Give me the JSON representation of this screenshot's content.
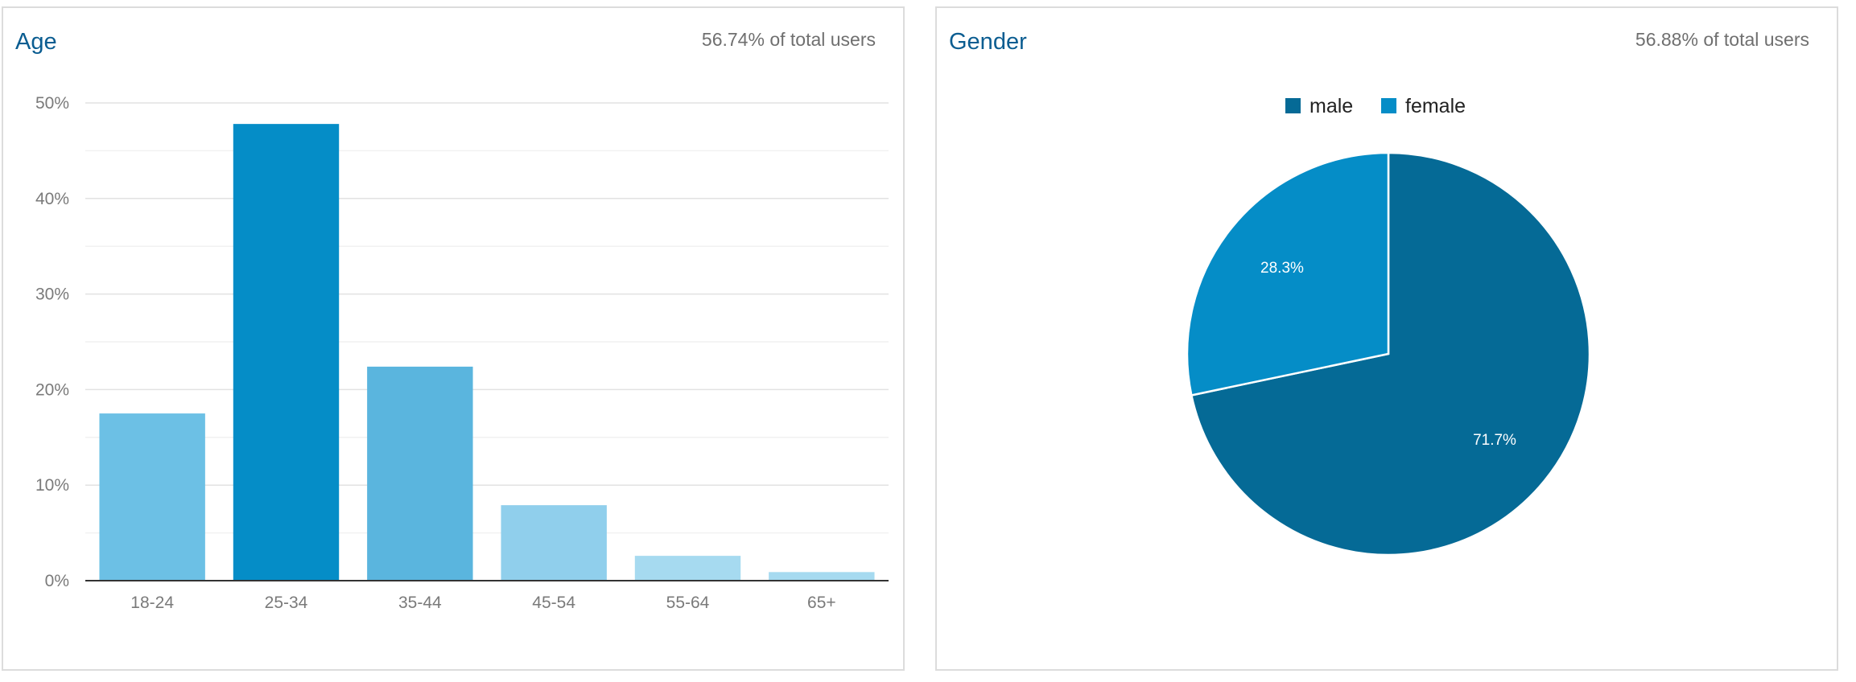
{
  "chart_data": [
    {
      "type": "bar",
      "title": "Age",
      "subtitle": "56.74% of total users",
      "categories": [
        "18-24",
        "25-34",
        "35-44",
        "45-54",
        "55-64",
        "65+"
      ],
      "values": [
        17.5,
        47.8,
        22.4,
        7.9,
        2.6,
        0.9
      ],
      "bar_colors": [
        "#6cc0e5",
        "#058dc7",
        "#5ab5de",
        "#90cfec",
        "#a6daf0",
        "#a6daf0"
      ],
      "ylim": [
        0,
        50
      ],
      "y_ticks": [
        0,
        10,
        20,
        30,
        40,
        50
      ],
      "y_tick_labels": [
        "0%",
        "10%",
        "20%",
        "30%",
        "40%",
        "50%"
      ],
      "xlabel": "",
      "ylabel": "",
      "grid": true
    },
    {
      "type": "pie",
      "title": "Gender",
      "subtitle": "56.88% of total users",
      "slices": [
        {
          "label": "male",
          "value": 71.7,
          "display": "71.7%",
          "color": "#056a96"
        },
        {
          "label": "female",
          "value": 28.3,
          "display": "28.3%",
          "color": "#058dc7"
        }
      ],
      "legend": "top"
    }
  ]
}
